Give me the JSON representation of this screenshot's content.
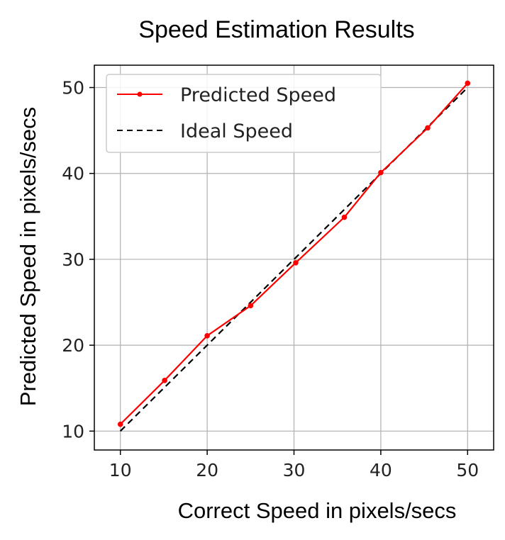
{
  "chart_data": {
    "type": "line",
    "title": "Speed Estimation Results",
    "xlabel": "Correct Speed in pixels/secs",
    "ylabel": "Predicted Speed in pixels/secs",
    "xlim": [
      7,
      53
    ],
    "ylim": [
      7.8,
      52.6
    ],
    "xticks": [
      10,
      20,
      30,
      40,
      50
    ],
    "yticks": [
      10,
      20,
      30,
      40,
      50
    ],
    "grid": true,
    "legend_position": "top-left",
    "series": [
      {
        "name": "Predicted Speed",
        "color": "#ff0000",
        "style": "solid",
        "marker": "dot",
        "x": [
          10,
          15.1,
          20,
          25,
          30.2,
          35.8,
          40,
          45.4,
          50
        ],
        "y": [
          10.8,
          15.9,
          21.1,
          24.6,
          29.6,
          34.9,
          40.1,
          45.3,
          50.5
        ]
      },
      {
        "name": "Ideal Speed",
        "color": "#000000",
        "style": "dashed",
        "marker": "none",
        "x": [
          10,
          50
        ],
        "y": [
          10,
          50
        ]
      }
    ]
  }
}
